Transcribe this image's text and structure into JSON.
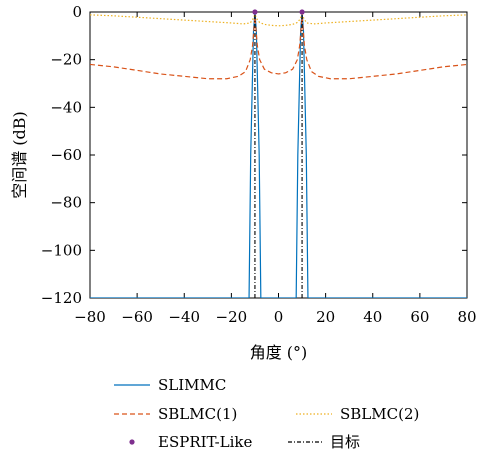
{
  "chart_data": {
    "type": "line",
    "title": "",
    "xlabel": "角度 (°)",
    "ylabel": "空间谱 (dB)",
    "xlim": [
      -80,
      80
    ],
    "ylim": [
      -120,
      0
    ],
    "xticks": [
      -80,
      -60,
      -40,
      -20,
      0,
      20,
      40,
      60,
      80
    ],
    "yticks": [
      0,
      -20,
      -40,
      -60,
      -80,
      -100,
      -120
    ],
    "xtick_labels": [
      "−80",
      "−60",
      "−40",
      "−20",
      "0",
      "20",
      "40",
      "60",
      "80"
    ],
    "ytick_labels": [
      "0",
      "−20",
      "−40",
      "−60",
      "−80",
      "−100",
      "−120"
    ],
    "grid": false,
    "legend_position": "bottom",
    "targets": [
      -10,
      10
    ],
    "series": [
      {
        "name": "SLIMMC",
        "color": "#0072BD",
        "style": "solid",
        "x": [
          -80,
          -12.5,
          -11.8,
          -10.6,
          -10,
          -9.4,
          -8.2,
          -7.5,
          7.5,
          8.2,
          9.4,
          10,
          10.6,
          11.8,
          12.5,
          80
        ],
        "y": [
          -120,
          -120,
          -60,
          -8,
          0,
          -8,
          -60,
          -120,
          -120,
          -60,
          -8,
          0,
          -8,
          -60,
          -120,
          -120
        ]
      },
      {
        "name": "SBLMC(1)",
        "color": "#D95319",
        "style": "dashed",
        "x": [
          -80,
          -70,
          -60,
          -50,
          -40,
          -30,
          -22,
          -17,
          -14,
          -12,
          -11,
          -10,
          -9,
          -8,
          -6,
          -3,
          0,
          3,
          6,
          8,
          9,
          10,
          11,
          12,
          14,
          17,
          22,
          30,
          40,
          50,
          60,
          70,
          80
        ],
        "y": [
          -22,
          -23,
          -24.5,
          -26,
          -27,
          -28,
          -28,
          -27,
          -25,
          -20,
          -14,
          -2,
          -14,
          -20,
          -24,
          -25.5,
          -26,
          -25.5,
          -24,
          -20,
          -14,
          -2,
          -14,
          -20,
          -25,
          -27,
          -28,
          -28,
          -27,
          -26,
          -24.5,
          -23,
          -22
        ]
      },
      {
        "name": "SBLMC(2)",
        "color": "#EDB120",
        "style": "dotted",
        "x": [
          -80,
          -70,
          -60,
          -50,
          -40,
          -30,
          -20,
          -15,
          -12,
          -11,
          -10,
          -9,
          -8,
          -6,
          -3,
          0,
          3,
          6,
          8,
          9,
          10,
          11,
          12,
          15,
          20,
          30,
          40,
          50,
          60,
          70,
          80
        ],
        "y": [
          -1.2,
          -1.6,
          -2.2,
          -2.8,
          -3.4,
          -4.0,
          -4.6,
          -5.0,
          -4.6,
          -3.2,
          -1.0,
          -3.2,
          -4.4,
          -5.2,
          -5.6,
          -5.8,
          -5.6,
          -5.2,
          -4.4,
          -3.2,
          -1.0,
          -3.2,
          -4.6,
          -5.0,
          -4.6,
          -4.0,
          -3.4,
          -2.8,
          -2.2,
          -1.6,
          -1.2
        ]
      },
      {
        "name": "ESPRIT-Like",
        "color": "#7E2F8E",
        "style": "markers",
        "x": [
          -10,
          10
        ],
        "y": [
          0,
          0
        ]
      },
      {
        "name": "目标",
        "color": "#000000",
        "style": "dashdot",
        "x": [
          -10,
          10
        ],
        "y": [
          0,
          0
        ]
      }
    ]
  }
}
